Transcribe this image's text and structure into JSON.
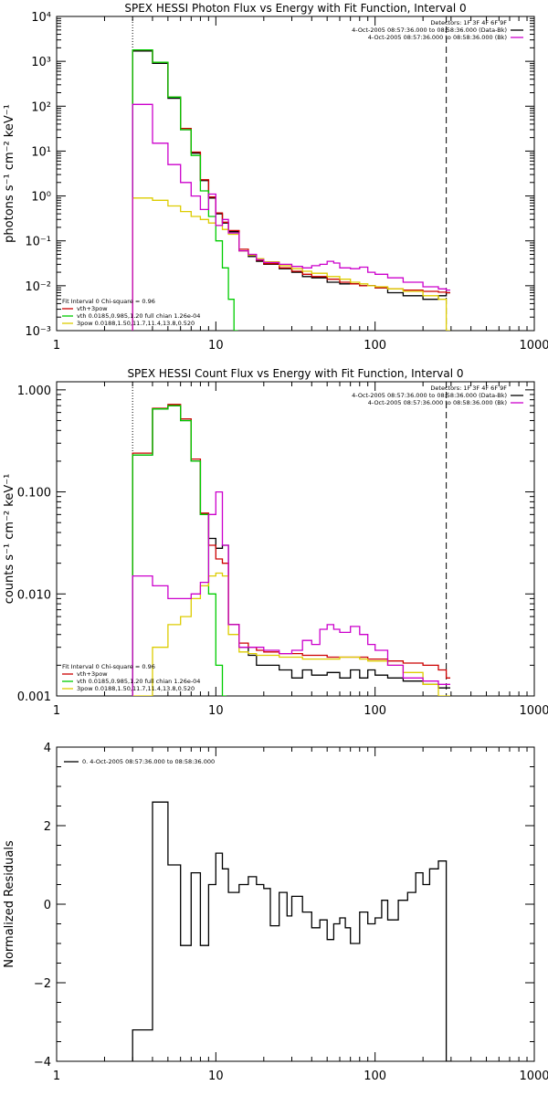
{
  "chart_data": [
    {
      "type": "line",
      "scale": "log-log",
      "title": "SPEX HESSI Photon Flux vs Energy with Fit Function, Interval 0",
      "ylabel": "photons s⁻¹ cm⁻² keV⁻¹",
      "xlabel": "",
      "xlim": [
        1,
        1000
      ],
      "ylim": [
        0.001,
        10000
      ],
      "xticks": [
        "1",
        "10",
        "100",
        "1000"
      ],
      "yticks": [
        "10⁻³",
        "10⁻²",
        "10⁻¹",
        "10⁰",
        "10¹",
        "10²",
        "10³",
        "10⁴"
      ],
      "vlines": [
        {
          "x": 3,
          "style": "dotted"
        },
        {
          "x": 280,
          "style": "dashed"
        }
      ],
      "legend_top_right": [
        "Detectors: 1F 3F 4F 6F 9F",
        "4-Oct-2005 08:57:36.000 to 08:58:36.000 (Data-Bk)",
        "4-Oct-2005 08:57:36.000 to 08:58:36.000 (Bk)"
      ],
      "legend_bottom_left": [
        "Fit Interval 0   Chi-square = 0.96",
        "vth+3pow",
        "vth 0.0185,0.985,1.20  full chian 1.26e-04",
        "3pow 0.0188,1.50,11.7,11.4,13.8,0.520"
      ],
      "series": [
        {
          "name": "",
          "color": "#000000",
          "x": [
            3,
            4,
            5,
            6,
            7,
            8,
            9,
            10,
            11,
            12,
            14,
            16,
            18,
            20,
            25,
            30,
            35,
            40,
            50,
            60,
            70,
            80,
            90,
            100,
            120,
            150,
            200,
            250,
            280
          ],
          "y": [
            1700,
            900,
            150,
            30,
            9,
            2.2,
            0.9,
            0.4,
            0.25,
            0.16,
            0.06,
            0.045,
            0.035,
            0.03,
            0.024,
            0.02,
            0.016,
            0.015,
            0.012,
            0.011,
            0.011,
            0.01,
            0.01,
            0.009,
            0.007,
            0.006,
            0.005,
            0.006,
            0.007
          ]
        },
        {
          "name": "vth+3pow",
          "color": "#cc0000",
          "x": [
            3,
            4,
            5,
            6,
            7,
            8,
            9,
            10,
            11,
            12,
            14,
            16,
            18,
            20,
            25,
            30,
            35,
            40,
            50,
            60,
            70,
            80,
            90,
            100,
            120,
            150,
            200,
            250,
            280
          ],
          "y": [
            1800,
            950,
            160,
            32,
            9.5,
            2.3,
            0.95,
            0.42,
            0.26,
            0.17,
            0.065,
            0.048,
            0.037,
            0.031,
            0.025,
            0.021,
            0.018,
            0.016,
            0.014,
            0.012,
            0.011,
            0.01,
            0.01,
            0.009,
            0.0085,
            0.008,
            0.0075,
            0.0072,
            0.007
          ]
        },
        {
          "name": "vth",
          "color": "#00cc00",
          "x": [
            3,
            4,
            5,
            6,
            7,
            8,
            9,
            10,
            11,
            12,
            13
          ],
          "y": [
            1800,
            950,
            160,
            30,
            8,
            1.3,
            0.35,
            0.1,
            0.025,
            0.005,
            0.001
          ]
        },
        {
          "name": "3pow",
          "color": "#ddcc00",
          "x": [
            3,
            4,
            5,
            6,
            7,
            8,
            9,
            10,
            11,
            12,
            14,
            16,
            18,
            20,
            25,
            30,
            35,
            40,
            50,
            60,
            70,
            80,
            90,
            100,
            120,
            150,
            200,
            250,
            280
          ],
          "y": [
            0.9,
            0.8,
            0.6,
            0.45,
            0.35,
            0.3,
            0.25,
            0.22,
            0.18,
            0.14,
            0.06,
            0.048,
            0.04,
            0.034,
            0.028,
            0.024,
            0.021,
            0.019,
            0.016,
            0.014,
            0.012,
            0.011,
            0.01,
            0.0095,
            0.0085,
            0.0075,
            0.006,
            0.005,
            0.001
          ]
        },
        {
          "name": "",
          "color": "#cc00cc",
          "x": [
            3,
            4,
            5,
            6,
            7,
            8,
            9,
            10,
            11,
            12,
            14,
            16,
            18,
            20,
            25,
            30,
            35,
            40,
            45,
            50,
            55,
            60,
            70,
            80,
            90,
            100,
            120,
            150,
            200,
            250,
            280
          ],
          "y": [
            110,
            15,
            5,
            2,
            1,
            0.5,
            1.1,
            0.22,
            0.3,
            0.15,
            0.06,
            0.05,
            0.038,
            0.033,
            0.03,
            0.027,
            0.025,
            0.028,
            0.03,
            0.035,
            0.032,
            0.025,
            0.024,
            0.026,
            0.02,
            0.018,
            0.015,
            0.012,
            0.0095,
            0.0085,
            0.008
          ]
        }
      ]
    },
    {
      "type": "line",
      "scale": "log-log",
      "title": "SPEX HESSI Count Flux vs Energy with Fit Function, Interval 0",
      "ylabel": "counts s⁻¹ cm⁻² keV⁻¹",
      "xlabel": "",
      "xlim": [
        1,
        1000
      ],
      "ylim": [
        0.001,
        1.2
      ],
      "xticks": [
        "1",
        "10",
        "100",
        "1000"
      ],
      "yticks": [
        "0.001",
        "0.010",
        "0.100",
        "1.000"
      ],
      "vlines": [
        {
          "x": 3,
          "style": "dotted"
        },
        {
          "x": 280,
          "style": "dashed"
        }
      ],
      "legend_top_right": [
        "Detectors: 1F 3F 4F 6F 9F",
        "4-Oct-2005 08:57:36.000 to 08:58:36.000 (Data-Bk)",
        "4-Oct-2005 08:57:36.000 to 08:58:36.000 (Bk)"
      ],
      "legend_bottom_left": [
        "Fit Interval 0   Chi-square = 0.96",
        "vth+3pow",
        "vth 0.0185,0.985,1.20  full chian 1.26e-04",
        "3pow 0.0188,1.50,11.7,11.4,13.8,0.520"
      ],
      "series": [
        {
          "name": "",
          "color": "#000000",
          "x": [
            3,
            4,
            5,
            6,
            7,
            8,
            9,
            10,
            11,
            12,
            14,
            16,
            18,
            20,
            25,
            30,
            35,
            40,
            50,
            60,
            70,
            80,
            90,
            100,
            120,
            150,
            200,
            250,
            280
          ],
          "y": [
            0.23,
            0.65,
            0.7,
            0.5,
            0.2,
            0.06,
            0.035,
            0.028,
            0.03,
            0.005,
            0.003,
            0.0025,
            0.002,
            0.002,
            0.0018,
            0.0015,
            0.0018,
            0.0016,
            0.0017,
            0.0015,
            0.0018,
            0.0015,
            0.0018,
            0.0016,
            0.0015,
            0.0014,
            0.0013,
            0.0012,
            0.0012
          ]
        },
        {
          "name": "vth+3pow",
          "color": "#cc0000",
          "x": [
            3,
            4,
            5,
            6,
            7,
            8,
            9,
            10,
            11,
            12,
            14,
            16,
            18,
            20,
            25,
            30,
            35,
            40,
            50,
            60,
            70,
            80,
            90,
            100,
            120,
            150,
            200,
            250,
            280
          ],
          "y": [
            0.24,
            0.66,
            0.72,
            0.52,
            0.21,
            0.062,
            0.03,
            0.022,
            0.02,
            0.005,
            0.0033,
            0.003,
            0.0028,
            0.0027,
            0.0026,
            0.0026,
            0.0025,
            0.0025,
            0.0024,
            0.0024,
            0.0024,
            0.0024,
            0.0023,
            0.0023,
            0.0022,
            0.0021,
            0.002,
            0.0018,
            0.0015
          ]
        },
        {
          "name": "vth",
          "color": "#00cc00",
          "x": [
            3,
            4,
            5,
            6,
            7,
            8,
            9,
            10,
            11
          ],
          "y": [
            0.23,
            0.65,
            0.7,
            0.5,
            0.2,
            0.06,
            0.01,
            0.002,
            0.001
          ]
        },
        {
          "name": "3pow",
          "color": "#ddcc00",
          "x": [
            3,
            4,
            5,
            6,
            7,
            8,
            9,
            10,
            11,
            12,
            14,
            16,
            18,
            20,
            25,
            30,
            35,
            40,
            50,
            60,
            70,
            80,
            90,
            100,
            120,
            150,
            200,
            250,
            280
          ],
          "y": [
            0.001,
            0.003,
            0.005,
            0.006,
            0.009,
            0.012,
            0.015,
            0.016,
            0.015,
            0.004,
            0.0027,
            0.0026,
            0.0025,
            0.0025,
            0.0024,
            0.0024,
            0.0023,
            0.0023,
            0.0023,
            0.0024,
            0.0024,
            0.0023,
            0.0022,
            0.0022,
            0.002,
            0.0017,
            0.0013,
            0.001,
            0.001
          ]
        },
        {
          "name": "",
          "color": "#cc00cc",
          "x": [
            3,
            4,
            5,
            6,
            7,
            8,
            9,
            10,
            11,
            12,
            14,
            16,
            18,
            20,
            25,
            30,
            35,
            40,
            45,
            50,
            55,
            60,
            70,
            80,
            90,
            100,
            120,
            150,
            200,
            250,
            280
          ],
          "y": [
            0.015,
            0.012,
            0.009,
            0.009,
            0.01,
            0.013,
            0.06,
            0.1,
            0.03,
            0.005,
            0.003,
            0.003,
            0.003,
            0.0028,
            0.0026,
            0.0028,
            0.0035,
            0.0032,
            0.0045,
            0.005,
            0.0045,
            0.0042,
            0.0048,
            0.004,
            0.0032,
            0.0028,
            0.002,
            0.0015,
            0.0014,
            0.0013,
            0.0013
          ]
        }
      ]
    },
    {
      "type": "line",
      "scale": "log-x",
      "title": "",
      "ylabel": "Normalized Residuals",
      "xlabel": "",
      "xlim": [
        1,
        1000
      ],
      "ylim": [
        -4,
        4
      ],
      "xticks": [
        "1",
        "10",
        "100",
        "1000"
      ],
      "yticks": [
        "−4",
        "−2",
        "0",
        "2",
        "4"
      ],
      "legend_top_left": [
        "0. 4-Oct-2005 08:57:36.000 to 08:58:36.000"
      ],
      "series": [
        {
          "name": "0. 4-Oct-2005 08:57:36.000 to 08:58:36.000",
          "color": "#000000",
          "x": [
            3,
            4,
            5,
            6,
            7,
            8,
            9,
            10,
            11,
            12,
            14,
            16,
            18,
            20,
            22,
            25,
            28,
            30,
            35,
            40,
            45,
            50,
            55,
            60,
            65,
            70,
            80,
            90,
            100,
            110,
            120,
            140,
            160,
            180,
            200,
            220,
            250,
            280
          ],
          "y": [
            -3.2,
            2.6,
            1.0,
            -1.05,
            0.8,
            -1.05,
            0.5,
            1.3,
            0.9,
            0.3,
            0.5,
            0.7,
            0.5,
            0.4,
            -0.55,
            0.3,
            -0.3,
            0.2,
            -0.2,
            -0.6,
            -0.4,
            -0.9,
            -0.5,
            -0.35,
            -0.6,
            -1.0,
            -0.2,
            -0.5,
            -0.35,
            0.1,
            -0.4,
            0.1,
            0.3,
            0.8,
            0.5,
            0.9,
            1.1,
            -4
          ]
        }
      ]
    }
  ]
}
